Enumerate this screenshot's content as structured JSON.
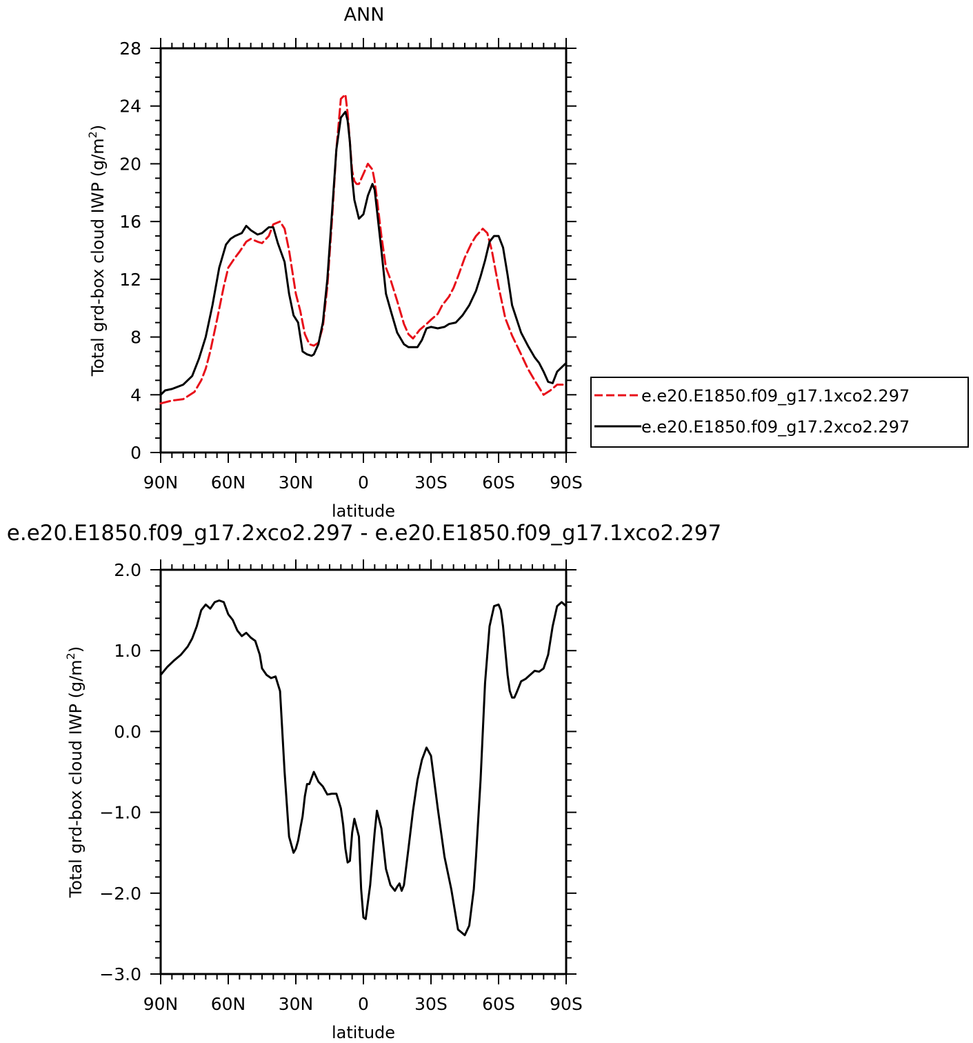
{
  "chart_data": [
    {
      "type": "line",
      "title": "ANN",
      "xlabel": "latitude",
      "ylabel": "Total grd-box cloud IWP (g/m²)",
      "ylabel_main": "Total grd-box cloud IWP (g/m",
      "ylabel_sup": "2",
      "ylabel_end": ")",
      "xlim": [
        90,
        -90
      ],
      "ylim": [
        0,
        28
      ],
      "x_ticks": [
        {
          "value": 90,
          "label": "90N"
        },
        {
          "value": 60,
          "label": "60N"
        },
        {
          "value": 30,
          "label": "30N"
        },
        {
          "value": 0,
          "label": "0"
        },
        {
          "value": -30,
          "label": "30S"
        },
        {
          "value": -60,
          "label": "60S"
        },
        {
          "value": -90,
          "label": "90S"
        }
      ],
      "y_ticks": [
        {
          "value": 0,
          "label": "0"
        },
        {
          "value": 4,
          "label": "4"
        },
        {
          "value": 8,
          "label": "8"
        },
        {
          "value": 12,
          "label": "12"
        },
        {
          "value": 16,
          "label": "16"
        },
        {
          "value": 20,
          "label": "20"
        },
        {
          "value": 24,
          "label": "24"
        },
        {
          "value": 28,
          "label": "28"
        }
      ],
      "legend_position": "right",
      "series": [
        {
          "name": "e.e20.E1850.f09_g17.1xco2.297",
          "color": "#e8101a",
          "dash": "dashed",
          "x": [
            90,
            85,
            80,
            75,
            72,
            70,
            68,
            65,
            62,
            60,
            57,
            55,
            52,
            50,
            47,
            45,
            42,
            40,
            37,
            35,
            33,
            30,
            28,
            26,
            24,
            22,
            20,
            18,
            16,
            14,
            12,
            10,
            8,
            7,
            6,
            5,
            4,
            3,
            2,
            0,
            -2,
            -4,
            -5,
            -6,
            -8,
            -10,
            -12,
            -15,
            -18,
            -20,
            -22,
            -25,
            -28,
            -30,
            -33,
            -35,
            -38,
            -40,
            -42,
            -45,
            -48,
            -50,
            -53,
            -55,
            -57,
            -60,
            -63,
            -66,
            -70,
            -73,
            -76,
            -80,
            -83,
            -86,
            -90
          ],
          "y": [
            3.4,
            3.6,
            3.7,
            4.2,
            5.0,
            5.8,
            7.0,
            9.2,
            11.5,
            12.8,
            13.5,
            13.9,
            14.6,
            14.8,
            14.6,
            14.5,
            15.0,
            15.8,
            16.0,
            15.5,
            14.0,
            11.0,
            9.8,
            8.2,
            7.5,
            7.4,
            7.6,
            8.7,
            11.5,
            16.0,
            21.0,
            24.5,
            24.8,
            23.5,
            21.5,
            19.5,
            18.8,
            18.6,
            18.6,
            19.3,
            20.0,
            19.6,
            18.8,
            17.6,
            15.0,
            12.8,
            12.0,
            10.5,
            8.9,
            8.2,
            7.9,
            8.5,
            8.9,
            9.2,
            9.6,
            10.2,
            10.8,
            11.4,
            12.2,
            13.5,
            14.5,
            15.0,
            15.5,
            15.2,
            14.0,
            11.5,
            9.3,
            8.1,
            6.8,
            5.8,
            5.0,
            4.0,
            4.3,
            4.7,
            4.7
          ]
        },
        {
          "name": "e.e20.E1850.f09_g17.2xco2.297",
          "color": "#000000",
          "dash": "solid",
          "x": [
            90,
            88,
            85,
            80,
            76,
            73,
            70,
            67,
            64,
            61,
            59,
            57,
            54,
            52,
            50,
            47,
            45,
            42,
            40,
            38,
            35,
            33,
            31,
            29,
            27,
            25,
            23,
            22,
            20,
            18,
            16,
            14,
            12,
            10,
            8,
            7,
            6,
            5,
            4,
            2,
            0,
            -2,
            -4,
            -5,
            -6,
            -8,
            -10,
            -12,
            -15,
            -18,
            -20,
            -22,
            -24,
            -26,
            -28,
            -30,
            -33,
            -36,
            -38,
            -41,
            -44,
            -47,
            -50,
            -52,
            -54,
            -56,
            -58,
            -60,
            -62,
            -64,
            -66,
            -70,
            -73,
            -76,
            -78,
            -80,
            -82,
            -84,
            -86,
            -90
          ],
          "y": [
            4.0,
            4.3,
            4.4,
            4.7,
            5.3,
            6.5,
            8.0,
            10.2,
            12.8,
            14.4,
            14.8,
            15.0,
            15.2,
            15.7,
            15.4,
            15.1,
            15.2,
            15.6,
            15.6,
            14.5,
            13.2,
            11.0,
            9.5,
            9.0,
            7.0,
            6.8,
            6.7,
            6.8,
            7.5,
            9.0,
            12.0,
            16.5,
            21.0,
            23.2,
            23.6,
            23.0,
            21.5,
            19.0,
            17.5,
            16.2,
            16.5,
            17.8,
            18.6,
            18.2,
            16.8,
            14.0,
            11.0,
            9.9,
            8.3,
            7.5,
            7.3,
            7.3,
            7.3,
            7.8,
            8.6,
            8.7,
            8.6,
            8.7,
            8.9,
            9.0,
            9.5,
            10.2,
            11.2,
            12.2,
            13.3,
            14.6,
            15.0,
            15.0,
            14.2,
            12.3,
            10.2,
            8.3,
            7.4,
            6.6,
            6.2,
            5.6,
            4.9,
            4.8,
            5.6,
            6.2
          ]
        }
      ]
    },
    {
      "type": "line",
      "title": "e.e20.E1850.f09_g17.2xco2.297 - e.e20.E1850.f09_g17.1xco2.297",
      "xlabel": "latitude",
      "ylabel": "Total grd-box cloud IWP (g/m²)",
      "ylabel_main": "Total grd-box cloud IWP (g/m",
      "ylabel_sup": "2",
      "ylabel_end": ")",
      "xlim": [
        90,
        -90
      ],
      "ylim": [
        -3.0,
        2.0
      ],
      "x_ticks": [
        {
          "value": 90,
          "label": "90N"
        },
        {
          "value": 60,
          "label": "60N"
        },
        {
          "value": 30,
          "label": "30N"
        },
        {
          "value": 0,
          "label": "0"
        },
        {
          "value": -30,
          "label": "30S"
        },
        {
          "value": -60,
          "label": "60S"
        },
        {
          "value": -90,
          "label": "90S"
        }
      ],
      "y_ticks": [
        {
          "value": -3.0,
          "label": "−3.0"
        },
        {
          "value": -2.0,
          "label": "−2.0"
        },
        {
          "value": -1.0,
          "label": "−1.0"
        },
        {
          "value": 0.0,
          "label": "0.0"
        },
        {
          "value": 1.0,
          "label": "1.0"
        },
        {
          "value": 2.0,
          "label": "2.0"
        }
      ],
      "series": [
        {
          "color": "#000000",
          "dash": "solid",
          "x": [
            90,
            87,
            84,
            81,
            78,
            76,
            74,
            72,
            70,
            68,
            66,
            64,
            62,
            60,
            58,
            56,
            54,
            52,
            50,
            48,
            46,
            45,
            43,
            41,
            39,
            37,
            35,
            33,
            31,
            30,
            29,
            28,
            27,
            26,
            25,
            24,
            22,
            20,
            18,
            16,
            14,
            12,
            10,
            9,
            8,
            7,
            6,
            5,
            4,
            2,
            1,
            0,
            -1,
            -3,
            -5,
            -6,
            -8,
            -10,
            -12,
            -14,
            -15,
            -16,
            -17,
            -18,
            -20,
            -22,
            -24,
            -26,
            -28,
            -30,
            -33,
            -36,
            -39,
            -42,
            -45,
            -47,
            -49,
            -50,
            -52,
            -54,
            -56,
            -58,
            -60,
            -61,
            -62,
            -63,
            -64,
            -65,
            -66,
            -67,
            -68,
            -69,
            -70,
            -72,
            -74,
            -76,
            -78,
            -80,
            -82,
            -84,
            -86,
            -88,
            -90
          ],
          "y": [
            0.7,
            0.8,
            0.88,
            0.95,
            1.05,
            1.15,
            1.3,
            1.5,
            1.57,
            1.52,
            1.6,
            1.62,
            1.6,
            1.45,
            1.38,
            1.25,
            1.18,
            1.22,
            1.16,
            1.12,
            0.95,
            0.78,
            0.7,
            0.66,
            0.68,
            0.5,
            -0.5,
            -1.3,
            -1.5,
            -1.45,
            -1.35,
            -1.2,
            -1.05,
            -0.8,
            -0.65,
            -0.65,
            -0.5,
            -0.62,
            -0.68,
            -0.78,
            -0.77,
            -0.77,
            -0.95,
            -1.15,
            -1.45,
            -1.62,
            -1.6,
            -1.25,
            -1.08,
            -1.3,
            -1.95,
            -2.3,
            -2.32,
            -1.9,
            -1.25,
            -0.98,
            -1.2,
            -1.7,
            -1.9,
            -1.97,
            -1.92,
            -1.88,
            -1.97,
            -1.9,
            -1.45,
            -0.98,
            -0.6,
            -0.35,
            -0.2,
            -0.3,
            -0.95,
            -1.55,
            -1.95,
            -2.45,
            -2.52,
            -2.4,
            -1.95,
            -1.55,
            -0.6,
            0.6,
            1.3,
            1.55,
            1.57,
            1.5,
            1.3,
            1.0,
            0.7,
            0.5,
            0.42,
            0.42,
            0.48,
            0.55,
            0.62,
            0.65,
            0.7,
            0.75,
            0.74,
            0.78,
            0.95,
            1.3,
            1.55,
            1.6,
            1.55
          ]
        }
      ]
    }
  ]
}
